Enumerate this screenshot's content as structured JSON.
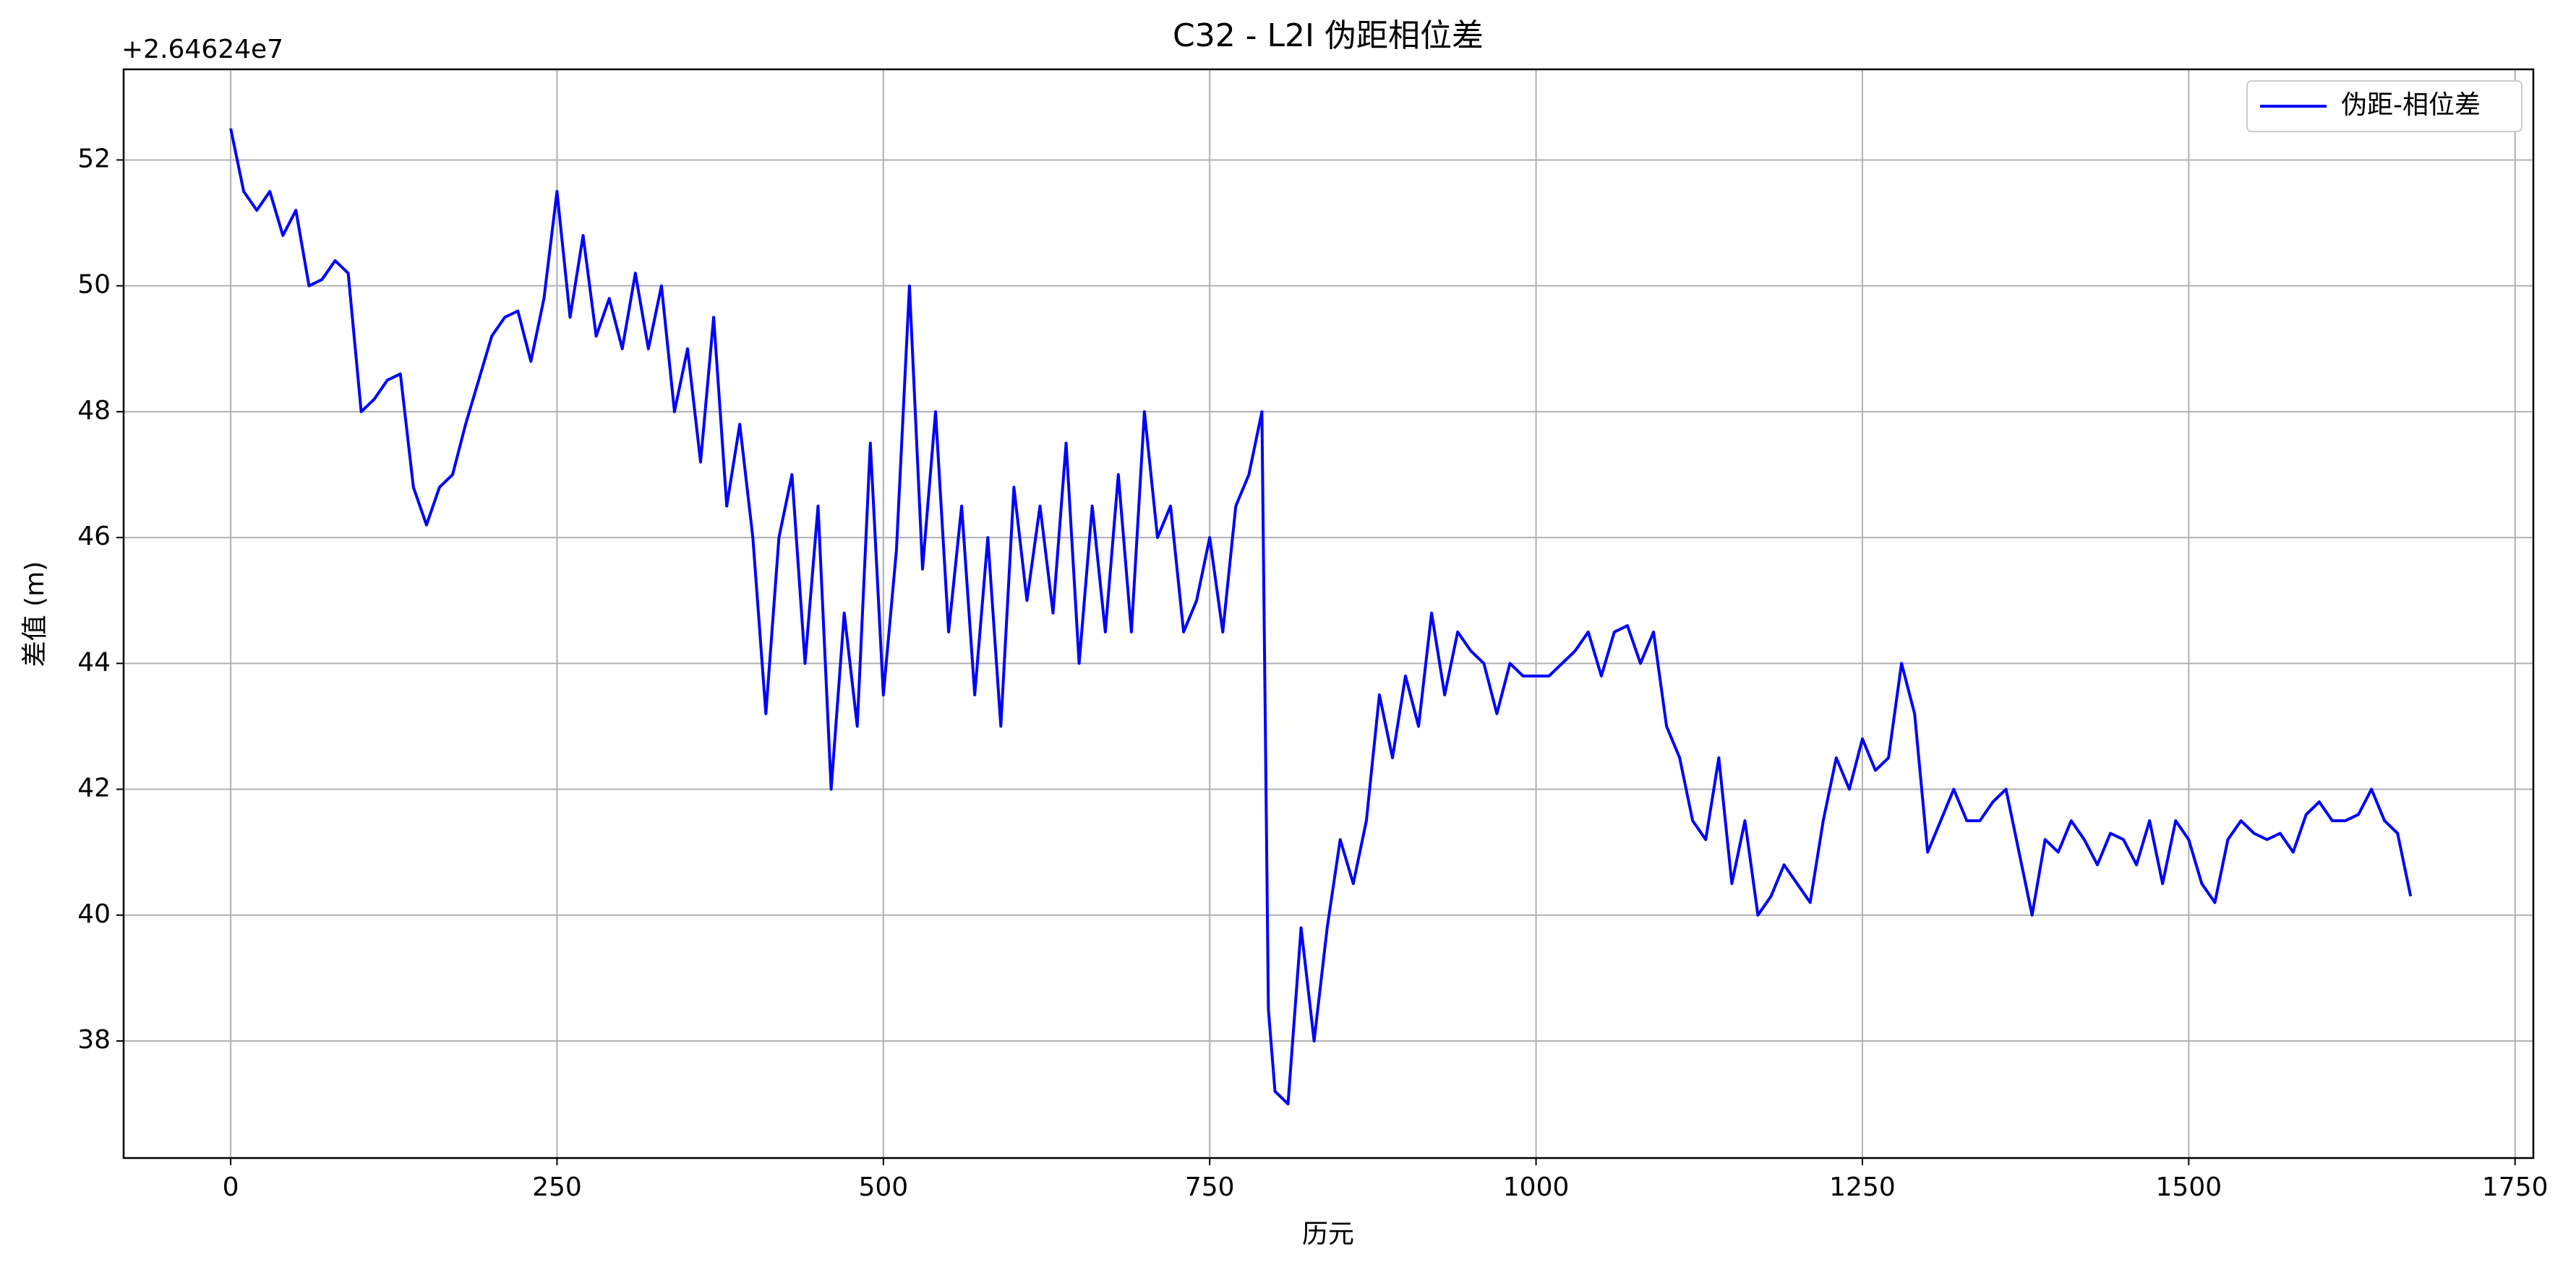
{
  "chart_data": {
    "type": "line",
    "title": "C32 - L2I 伪距相位差",
    "x_label": "历元",
    "y_label": "差值 (m)",
    "y_offset_label": "+2.64624e7",
    "x": [
      0,
      10,
      20,
      30,
      40,
      50,
      60,
      70,
      80,
      90,
      100,
      110,
      120,
      130,
      140,
      150,
      160,
      170,
      180,
      190,
      200,
      210,
      220,
      230,
      240,
      250,
      260,
      270,
      280,
      290,
      300,
      310,
      320,
      330,
      340,
      350,
      360,
      370,
      380,
      390,
      400,
      410,
      420,
      430,
      440,
      450,
      460,
      470,
      480,
      490,
      500,
      510,
      520,
      530,
      540,
      550,
      560,
      570,
      580,
      590,
      600,
      610,
      620,
      630,
      640,
      650,
      660,
      670,
      680,
      690,
      700,
      710,
      720,
      730,
      740,
      750,
      760,
      770,
      780,
      790,
      795,
      800,
      810,
      820,
      830,
      840,
      850,
      860,
      870,
      880,
      890,
      900,
      910,
      920,
      930,
      940,
      950,
      960,
      970,
      980,
      990,
      1000,
      1010,
      1020,
      1030,
      1040,
      1050,
      1060,
      1070,
      1080,
      1090,
      1100,
      1110,
      1120,
      1130,
      1140,
      1150,
      1160,
      1170,
      1180,
      1190,
      1200,
      1210,
      1220,
      1230,
      1240,
      1250,
      1260,
      1270,
      1280,
      1290,
      1300,
      1310,
      1320,
      1330,
      1340,
      1350,
      1360,
      1370,
      1380,
      1390,
      1400,
      1410,
      1420,
      1430,
      1440,
      1450,
      1460,
      1470,
      1480,
      1490,
      1500,
      1510,
      1520,
      1530,
      1540,
      1550,
      1560,
      1570,
      1580,
      1590,
      1600,
      1610,
      1620,
      1630,
      1640,
      1650,
      1660,
      1670
    ],
    "series": [
      {
        "name": "伪距-相位差",
        "color": "#0000ff",
        "values": [
          52.5,
          51.5,
          51.2,
          51.5,
          50.8,
          51.2,
          50.0,
          50.1,
          50.4,
          50.2,
          48.0,
          48.2,
          48.5,
          48.6,
          46.8,
          46.2,
          46.8,
          47.0,
          47.8,
          48.5,
          49.2,
          49.5,
          49.6,
          48.8,
          49.8,
          51.5,
          49.5,
          50.8,
          49.2,
          49.8,
          49.0,
          50.2,
          49.0,
          50.0,
          48.0,
          49.0,
          47.2,
          49.5,
          46.5,
          47.8,
          46.0,
          43.2,
          46.0,
          47.0,
          44.0,
          46.5,
          42.0,
          44.8,
          43.0,
          47.5,
          43.5,
          45.8,
          50.0,
          45.5,
          48.0,
          44.5,
          46.5,
          43.5,
          46.0,
          43.0,
          46.8,
          45.0,
          46.5,
          44.8,
          47.5,
          44.0,
          46.5,
          44.5,
          47.0,
          44.5,
          48.0,
          46.0,
          46.5,
          44.5,
          45.0,
          46.0,
          44.5,
          46.5,
          47.0,
          48.0,
          38.5,
          37.2,
          37.0,
          39.8,
          38.0,
          39.8,
          41.2,
          40.5,
          41.5,
          43.5,
          42.5,
          43.8,
          43.0,
          44.8,
          43.5,
          44.5,
          44.2,
          44.0,
          43.2,
          44.0,
          43.8,
          43.8,
          43.8,
          44.0,
          44.2,
          44.5,
          43.8,
          44.5,
          44.6,
          44.0,
          44.5,
          43.0,
          42.5,
          41.5,
          41.2,
          42.5,
          40.5,
          41.5,
          40.0,
          40.3,
          40.8,
          40.5,
          40.2,
          41.5,
          42.5,
          42.0,
          42.8,
          42.3,
          42.5,
          44.0,
          43.2,
          41.0,
          41.5,
          42.0,
          41.5,
          41.5,
          41.8,
          42.0,
          41.0,
          40.0,
          41.2,
          41.0,
          41.5,
          41.2,
          40.8,
          41.3,
          41.2,
          40.8,
          41.5,
          40.5,
          41.5,
          41.2,
          40.5,
          40.2,
          41.2,
          41.5,
          41.3,
          41.2,
          41.3,
          41.0,
          41.6,
          41.8,
          41.5,
          41.5,
          41.6,
          42.0,
          41.5,
          41.3,
          40.3
        ]
      }
    ],
    "xlim": [
      -82,
      1764
    ],
    "ylim": [
      36.14,
      53.44
    ],
    "xticks": [
      0,
      250,
      500,
      750,
      1000,
      1250,
      1500,
      1750
    ],
    "yticks": [
      38,
      40,
      42,
      44,
      46,
      48,
      50,
      52
    ],
    "grid": true,
    "legend": "upper right"
  }
}
